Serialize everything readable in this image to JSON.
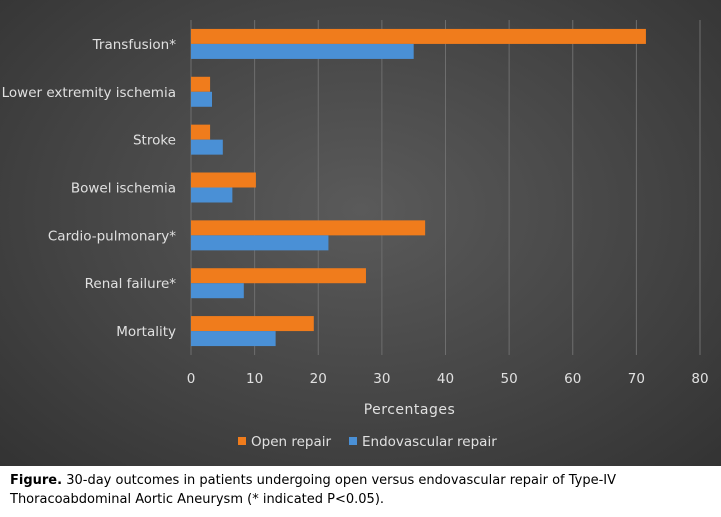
{
  "chart_data": {
    "type": "bar",
    "orientation": "horizontal",
    "categories": [
      "Transfusion*",
      "Lower extremity ischemia",
      "Stroke",
      "Bowel ischemia",
      "Cardio-pulmonary*",
      "Renal failure*",
      "Mortality"
    ],
    "series": [
      {
        "name": "Open repair",
        "values": [
          71.5,
          3,
          3,
          10.2,
          36.8,
          27.5,
          19.3
        ],
        "color": "#f07c1c"
      },
      {
        "name": "Endovascular repair",
        "values": [
          35,
          3.3,
          5,
          6.5,
          21.6,
          8.3,
          13.3
        ],
        "color": "#4a90d6"
      }
    ],
    "xlabel": "Percentages",
    "xlim": [
      0,
      80
    ],
    "xticks": [
      0,
      10,
      20,
      30,
      40,
      50,
      60,
      70,
      80
    ],
    "grid": "vertical",
    "legend_position": "bottom"
  },
  "caption": {
    "label": "Figure.",
    "text": " 30-day outcomes in patients undergoing open versus endovascular repair of Type-IV Thoracoabdominal Aortic Aneurysm (* indicated P<0.05)."
  }
}
